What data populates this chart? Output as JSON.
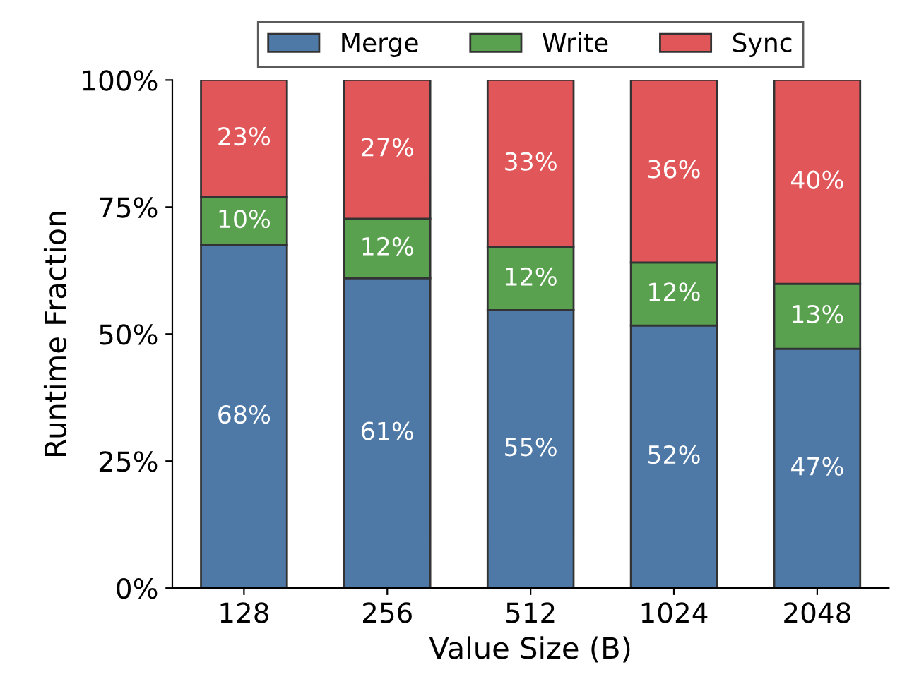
{
  "chart_data": {
    "type": "bar",
    "stacked": true,
    "xlabel": "Value Size (B)",
    "ylabel": "Runtime Fraction",
    "categories": [
      "128",
      "256",
      "512",
      "1024",
      "2048"
    ],
    "series": [
      {
        "name": "Merge",
        "color": "#4e79a7",
        "values": [
          67.5,
          61,
          54.7,
          51.7,
          47.1
        ],
        "value_labels": [
          "68%",
          "61%",
          "55%",
          "52%",
          "47%"
        ]
      },
      {
        "name": "Write",
        "color": "#59a14f",
        "values": [
          9.5,
          11.7,
          12.4,
          12.4,
          12.8
        ],
        "value_labels": [
          "10%",
          "12%",
          "12%",
          "12%",
          "13%"
        ]
      },
      {
        "name": "Sync",
        "color": "#e15759",
        "values": [
          23,
          27.3,
          32.9,
          35.9,
          40.1
        ],
        "value_labels": [
          "23%",
          "27%",
          "33%",
          "36%",
          "40%"
        ]
      }
    ],
    "ylim": [
      0,
      100
    ],
    "yticks": [
      {
        "value": 0,
        "label": "0%"
      },
      {
        "value": 25,
        "label": "25%"
      },
      {
        "value": 50,
        "label": "50%"
      },
      {
        "value": 75,
        "label": "75%"
      },
      {
        "value": 100,
        "label": "100%"
      }
    ],
    "legend": "top",
    "grid": false
  }
}
